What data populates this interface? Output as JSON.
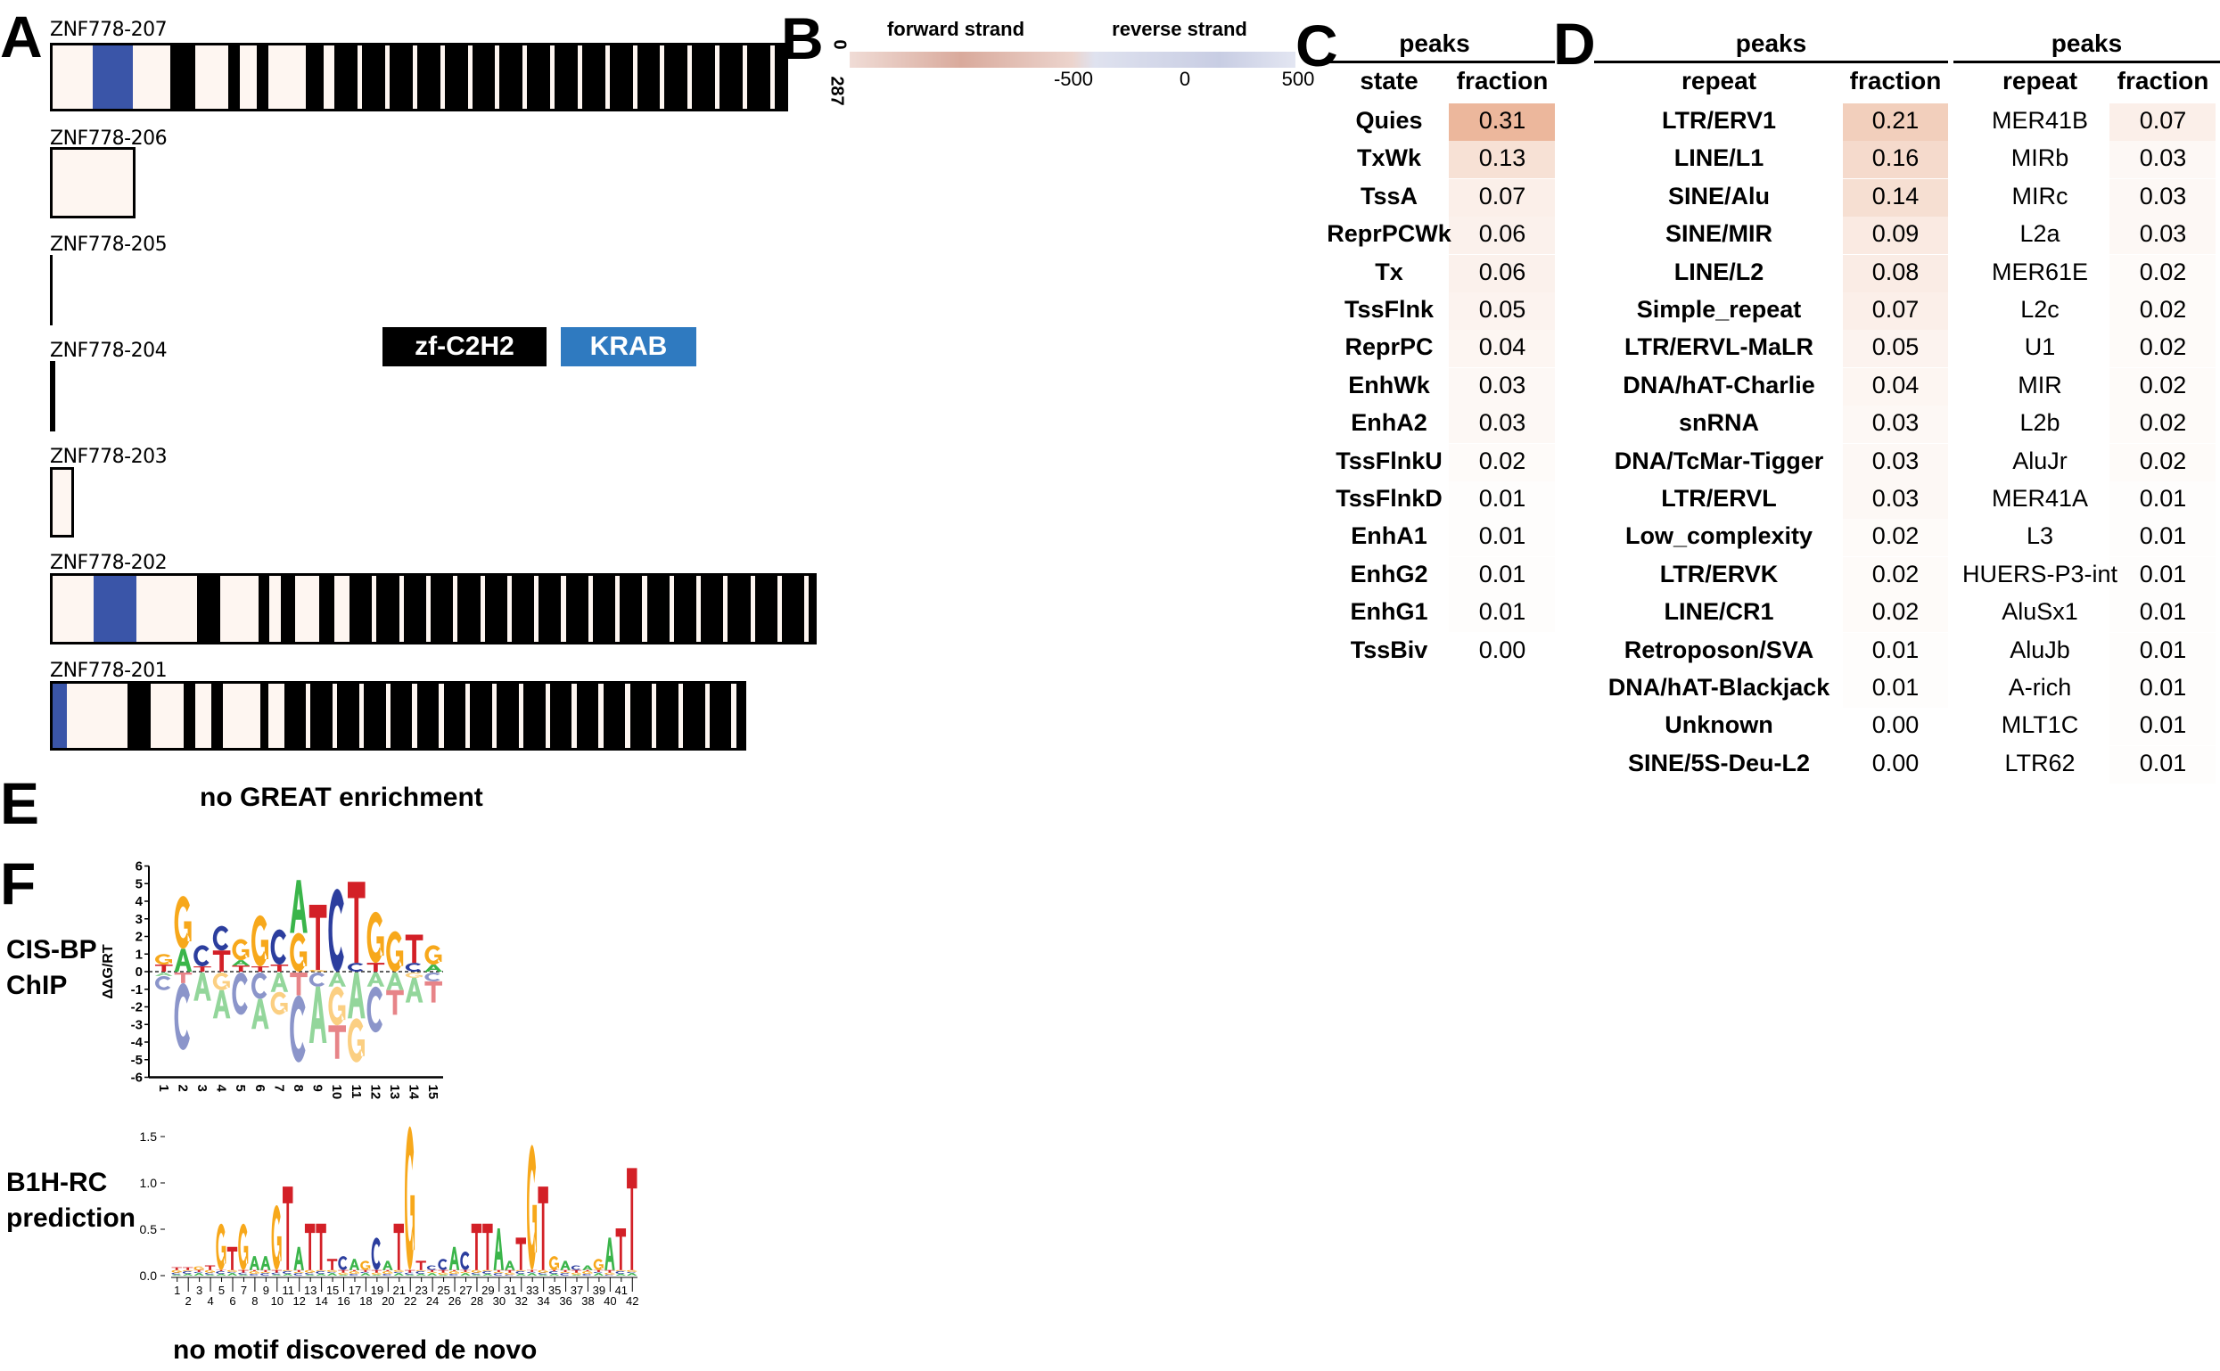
{
  "panels": {
    "A": "A",
    "B": "B",
    "C": "C",
    "D": "D",
    "E": "E",
    "F": "F"
  },
  "panel_a": {
    "transcripts": [
      "ZNF778-207",
      "ZNF778-206",
      "ZNF778-205",
      "ZNF778-204",
      "ZNF778-203",
      "ZNF778-202",
      "ZNF778-201"
    ],
    "legend": [
      {
        "label": "zf-C2H2",
        "color": "#000000"
      },
      {
        "label": "KRAB",
        "color": "#2f7ac0"
      }
    ],
    "colors": {
      "exon": "#fef6f1",
      "zf": "#000000",
      "krab": "#3a55a8"
    }
  },
  "panel_b": {
    "forward_label": "forward strand",
    "reverse_label": "reverse strand",
    "row_top": "0",
    "row_bottom": "287",
    "ticks": [
      "-500",
      "0",
      "500"
    ],
    "colors": {
      "forward": "#c97f70",
      "reverse": "#7a86bb"
    }
  },
  "panel_c": {
    "group": "peaks",
    "headers": [
      "state",
      "fraction"
    ],
    "rows": [
      [
        "Quies",
        "0.31"
      ],
      [
        "TxWk",
        "0.13"
      ],
      [
        "TssA",
        "0.07"
      ],
      [
        "ReprPCWk",
        "0.06"
      ],
      [
        "Tx",
        "0.06"
      ],
      [
        "TssFlnk",
        "0.05"
      ],
      [
        "ReprPC",
        "0.04"
      ],
      [
        "EnhWk",
        "0.03"
      ],
      [
        "EnhA2",
        "0.03"
      ],
      [
        "TssFlnkU",
        "0.02"
      ],
      [
        "TssFlnkD",
        "0.01"
      ],
      [
        "EnhA1",
        "0.01"
      ],
      [
        "EnhG2",
        "0.01"
      ],
      [
        "EnhG1",
        "0.01"
      ],
      [
        "TssBiv",
        "0.00"
      ]
    ],
    "heat_color": "#e6a07c"
  },
  "panel_d": {
    "table1": {
      "group": "peaks",
      "headers": [
        "repeat",
        "fraction"
      ],
      "rows": [
        [
          "LTR/ERV1",
          "0.21"
        ],
        [
          "LINE/L1",
          "0.16"
        ],
        [
          "SINE/Alu",
          "0.14"
        ],
        [
          "SINE/MIR",
          "0.09"
        ],
        [
          "LINE/L2",
          "0.08"
        ],
        [
          "Simple_repeat",
          "0.07"
        ],
        [
          "LTR/ERVL-MaLR",
          "0.05"
        ],
        [
          "DNA/hAT-Charlie",
          "0.04"
        ],
        [
          "snRNA",
          "0.03"
        ],
        [
          "DNA/TcMar-Tigger",
          "0.03"
        ],
        [
          "LTR/ERVL",
          "0.03"
        ],
        [
          "Low_complexity",
          "0.02"
        ],
        [
          "LTR/ERVK",
          "0.02"
        ],
        [
          "LINE/CR1",
          "0.02"
        ],
        [
          "Retroposon/SVA",
          "0.01"
        ],
        [
          "DNA/hAT-Blackjack",
          "0.01"
        ],
        [
          "Unknown",
          "0.00"
        ],
        [
          "SINE/5S-Deu-L2",
          "0.00"
        ]
      ]
    },
    "table2": {
      "group": "peaks",
      "headers": [
        "repeat",
        "fraction"
      ],
      "rows": [
        [
          "MER41B",
          "0.07"
        ],
        [
          "MIRb",
          "0.03"
        ],
        [
          "MIRc",
          "0.03"
        ],
        [
          "L2a",
          "0.03"
        ],
        [
          "MER61E",
          "0.02"
        ],
        [
          "L2c",
          "0.02"
        ],
        [
          "U1",
          "0.02"
        ],
        [
          "MIR",
          "0.02"
        ],
        [
          "L2b",
          "0.02"
        ],
        [
          "AluJr",
          "0.02"
        ],
        [
          "MER41A",
          "0.01"
        ],
        [
          "L3",
          "0.01"
        ],
        [
          "HUERS-P3-int",
          "0.01"
        ],
        [
          "AluSx1",
          "0.01"
        ],
        [
          "AluJb",
          "0.01"
        ],
        [
          "A-rich",
          "0.01"
        ],
        [
          "MLT1C",
          "0.01"
        ],
        [
          "LTR62",
          "0.01"
        ]
      ]
    }
  },
  "panel_e": {
    "text": "no GREAT enrichment"
  },
  "panel_f": {
    "cisbp": {
      "label_line1": "CIS-BP",
      "label_line2": "ChIP",
      "ylabel": "ΔΔG/RT",
      "yticks": [
        "6",
        "5",
        "4",
        "3",
        "2",
        "1",
        "0",
        "-1",
        "-2",
        "-3",
        "-4",
        "-5",
        "-6"
      ],
      "xticks": [
        "1",
        "2",
        "3",
        "4",
        "5",
        "6",
        "7",
        "8",
        "9",
        "10",
        "11",
        "12",
        "13",
        "14",
        "15"
      ],
      "positive": [
        [
          [
            "T",
            0.4
          ],
          [
            "G",
            0.6
          ]
        ],
        [
          [
            "A",
            1.3
          ],
          [
            "G",
            3.0
          ]
        ],
        [
          [
            "T",
            0.3
          ],
          [
            "C",
            1.2
          ]
        ],
        [
          [
            "T",
            1.2
          ],
          [
            "C",
            1.4
          ]
        ],
        [
          [
            "T",
            0.35
          ],
          [
            "A",
            0.3
          ],
          [
            "G",
            1.2
          ]
        ],
        [
          [
            "T",
            0.3
          ],
          [
            "G",
            2.9
          ]
        ],
        [
          [
            "T",
            0.4
          ],
          [
            "C",
            2.0
          ]
        ],
        [
          [
            "G",
            2.2
          ],
          [
            "A",
            3.0
          ]
        ],
        [
          [
            "G",
            0.1
          ],
          [
            "T",
            3.7
          ]
        ],
        [
          [
            "C",
            4.7
          ]
        ],
        [
          [
            "C",
            0.5
          ],
          [
            "T",
            4.6
          ]
        ],
        [
          [
            "T",
            0.5
          ],
          [
            "G",
            2.9
          ]
        ],
        [
          [
            "G",
            2.3
          ]
        ],
        [
          [
            "C",
            0.5
          ],
          [
            "T",
            1.6
          ]
        ],
        [
          [
            "A",
            0.4
          ],
          [
            "G",
            1.1
          ]
        ]
      ],
      "negative": [
        [
          [
            "A",
            0.2
          ],
          [
            "C",
            0.8
          ]
        ],
        [
          [
            "T",
            0.6
          ],
          [
            "C",
            3.8
          ]
        ],
        [
          [
            "A",
            1.6
          ]
        ],
        [
          [
            "G",
            1.0
          ],
          [
            "A",
            1.6
          ]
        ],
        [
          [
            "C",
            2.4
          ]
        ],
        [
          [
            "C",
            1.5
          ],
          [
            "A",
            1.7
          ]
        ],
        [
          [
            "A",
            1.1
          ],
          [
            "G",
            1.3
          ]
        ],
        [
          [
            "T",
            1.3
          ],
          [
            "C",
            3.8
          ]
        ],
        [
          [
            "C",
            0.8
          ],
          [
            "A",
            3.2
          ]
        ],
        [
          [
            "A",
            0.8
          ],
          [
            "G",
            2.2
          ],
          [
            "T",
            1.9
          ]
        ],
        [
          [
            "A",
            2.6
          ],
          [
            "G",
            2.5
          ]
        ],
        [
          [
            "A",
            0.8
          ],
          [
            "C",
            2.6
          ]
        ],
        [
          [
            "A",
            1.0
          ],
          [
            "T",
            1.4
          ]
        ],
        [
          [
            "G",
            0.3
          ],
          [
            "A",
            1.4
          ]
        ],
        [
          [
            "C",
            0.5
          ],
          [
            "T",
            1.2
          ]
        ]
      ]
    },
    "b1h": {
      "label_line1": "B1H-RC",
      "label_line2": "prediction",
      "yticks": [
        "0.0",
        "0.5",
        "1.0",
        "1.5"
      ],
      "top_letters": [
        [
          "T",
          0.03
        ],
        [
          "T",
          0.03
        ],
        [
          "G",
          0.04
        ],
        [
          "T",
          0.05
        ],
        [
          "G",
          0.5
        ],
        [
          "T",
          0.25
        ],
        [
          "G",
          0.5
        ],
        [
          "A",
          0.15
        ],
        [
          "A",
          0.15
        ],
        [
          "G",
          0.7
        ],
        [
          "T",
          0.9
        ],
        [
          "A",
          0.25
        ],
        [
          "T",
          0.5
        ],
        [
          "T",
          0.5
        ],
        [
          "T",
          0.12
        ],
        [
          "C",
          0.15
        ],
        [
          "A",
          0.12
        ],
        [
          "G",
          0.1
        ],
        [
          "C",
          0.35
        ],
        [
          "A",
          0.1
        ],
        [
          "T",
          0.5
        ],
        [
          "G",
          1.55
        ],
        [
          "T",
          0.1
        ],
        [
          "C",
          0.05
        ],
        [
          "C",
          0.12
        ],
        [
          "A",
          0.25
        ],
        [
          "C",
          0.2
        ],
        [
          "T",
          0.5
        ],
        [
          "T",
          0.5
        ],
        [
          "A",
          0.45
        ],
        [
          "A",
          0.1
        ],
        [
          "T",
          0.35
        ],
        [
          "G",
          1.35
        ],
        [
          "T",
          0.9
        ],
        [
          "G",
          0.15
        ],
        [
          "A",
          0.1
        ],
        [
          "C",
          0.05
        ],
        [
          "A",
          0.05
        ],
        [
          "G",
          0.12
        ],
        [
          "A",
          0.35
        ],
        [
          "T",
          0.45
        ],
        [
          "T",
          1.1
        ]
      ],
      "xticks": [
        "1",
        "2",
        "3",
        "4",
        "5",
        "6",
        "7",
        "8",
        "9",
        "10",
        "11",
        "12",
        "13",
        "14",
        "15",
        "16",
        "17",
        "18",
        "19",
        "20",
        "21",
        "22",
        "23",
        "24",
        "25",
        "26",
        "27",
        "28",
        "29",
        "30",
        "31",
        "32",
        "33",
        "34",
        "35",
        "36",
        "37",
        "38",
        "39",
        "40",
        "41",
        "42"
      ]
    },
    "denovo_text": "no motif discovered de novo",
    "letter_colors": {
      "A": "#3ab54a",
      "C": "#2c3e9e",
      "G": "#f7a81b",
      "T": "#d32027"
    }
  }
}
